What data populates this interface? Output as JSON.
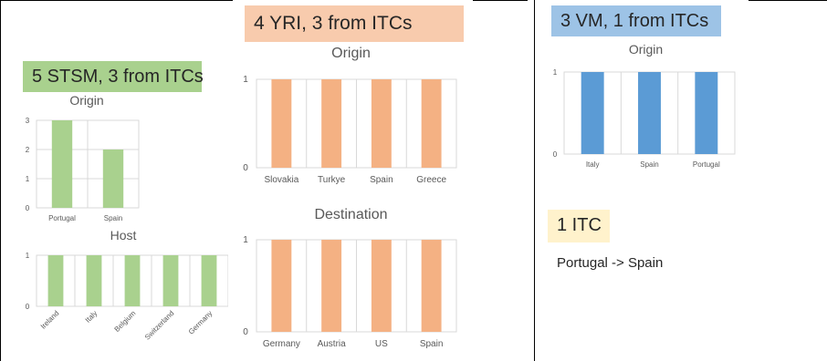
{
  "panels": {
    "stsm": {
      "badge": "5 STSM, 3 from ITCs",
      "badge_color": "#A9D18E"
    },
    "yri": {
      "badge": "4 YRI, 3 from ITCs",
      "badge_color": "#F8CBAD"
    },
    "vm": {
      "badge": "3 VM, 1 from ITCs",
      "badge_color": "#9DC3E6"
    },
    "itc": {
      "badge": "1 ITC",
      "badge_color": "#FFF2CC",
      "note": "Portugal -> Spain"
    }
  },
  "chart_data": [
    {
      "id": "stsm-origin",
      "type": "bar",
      "title": "Origin",
      "categories": [
        "Portugal",
        "Spain"
      ],
      "values": [
        3,
        2
      ],
      "yticks": [
        0,
        1,
        2,
        3
      ],
      "ylim": [
        0,
        3
      ],
      "grid": true,
      "color": "#A9D18E"
    },
    {
      "id": "stsm-host",
      "type": "bar",
      "title": "Host",
      "categories": [
        "Ireland",
        "Italy",
        "Belgium",
        "Switzerland",
        "Germany"
      ],
      "values": [
        1,
        1,
        1,
        1,
        1
      ],
      "yticks": [
        0,
        1
      ],
      "ylim": [
        0,
        1
      ],
      "grid": true,
      "color": "#A9D18E"
    },
    {
      "id": "yri-origin",
      "type": "bar",
      "title": "Origin",
      "categories": [
        "Slovakia",
        "Turkye",
        "Spain",
        "Greece"
      ],
      "values": [
        1,
        1,
        1,
        1
      ],
      "yticks": [
        0,
        1
      ],
      "ylim": [
        0,
        1
      ],
      "grid": true,
      "color": "#F4B183"
    },
    {
      "id": "yri-destination",
      "type": "bar",
      "title": "Destination",
      "categories": [
        "Germany",
        "Austria",
        "US",
        "Spain"
      ],
      "values": [
        1,
        1,
        1,
        1
      ],
      "yticks": [
        0,
        1
      ],
      "ylim": [
        0,
        1
      ],
      "grid": true,
      "color": "#F4B183"
    },
    {
      "id": "vm-origin",
      "type": "bar",
      "title": "Origin",
      "categories": [
        "Italy",
        "Spain",
        "Portugal"
      ],
      "values": [
        1,
        1,
        1
      ],
      "yticks": [
        0,
        1
      ],
      "ylim": [
        0,
        1
      ],
      "grid": true,
      "color": "#5B9BD5"
    }
  ]
}
